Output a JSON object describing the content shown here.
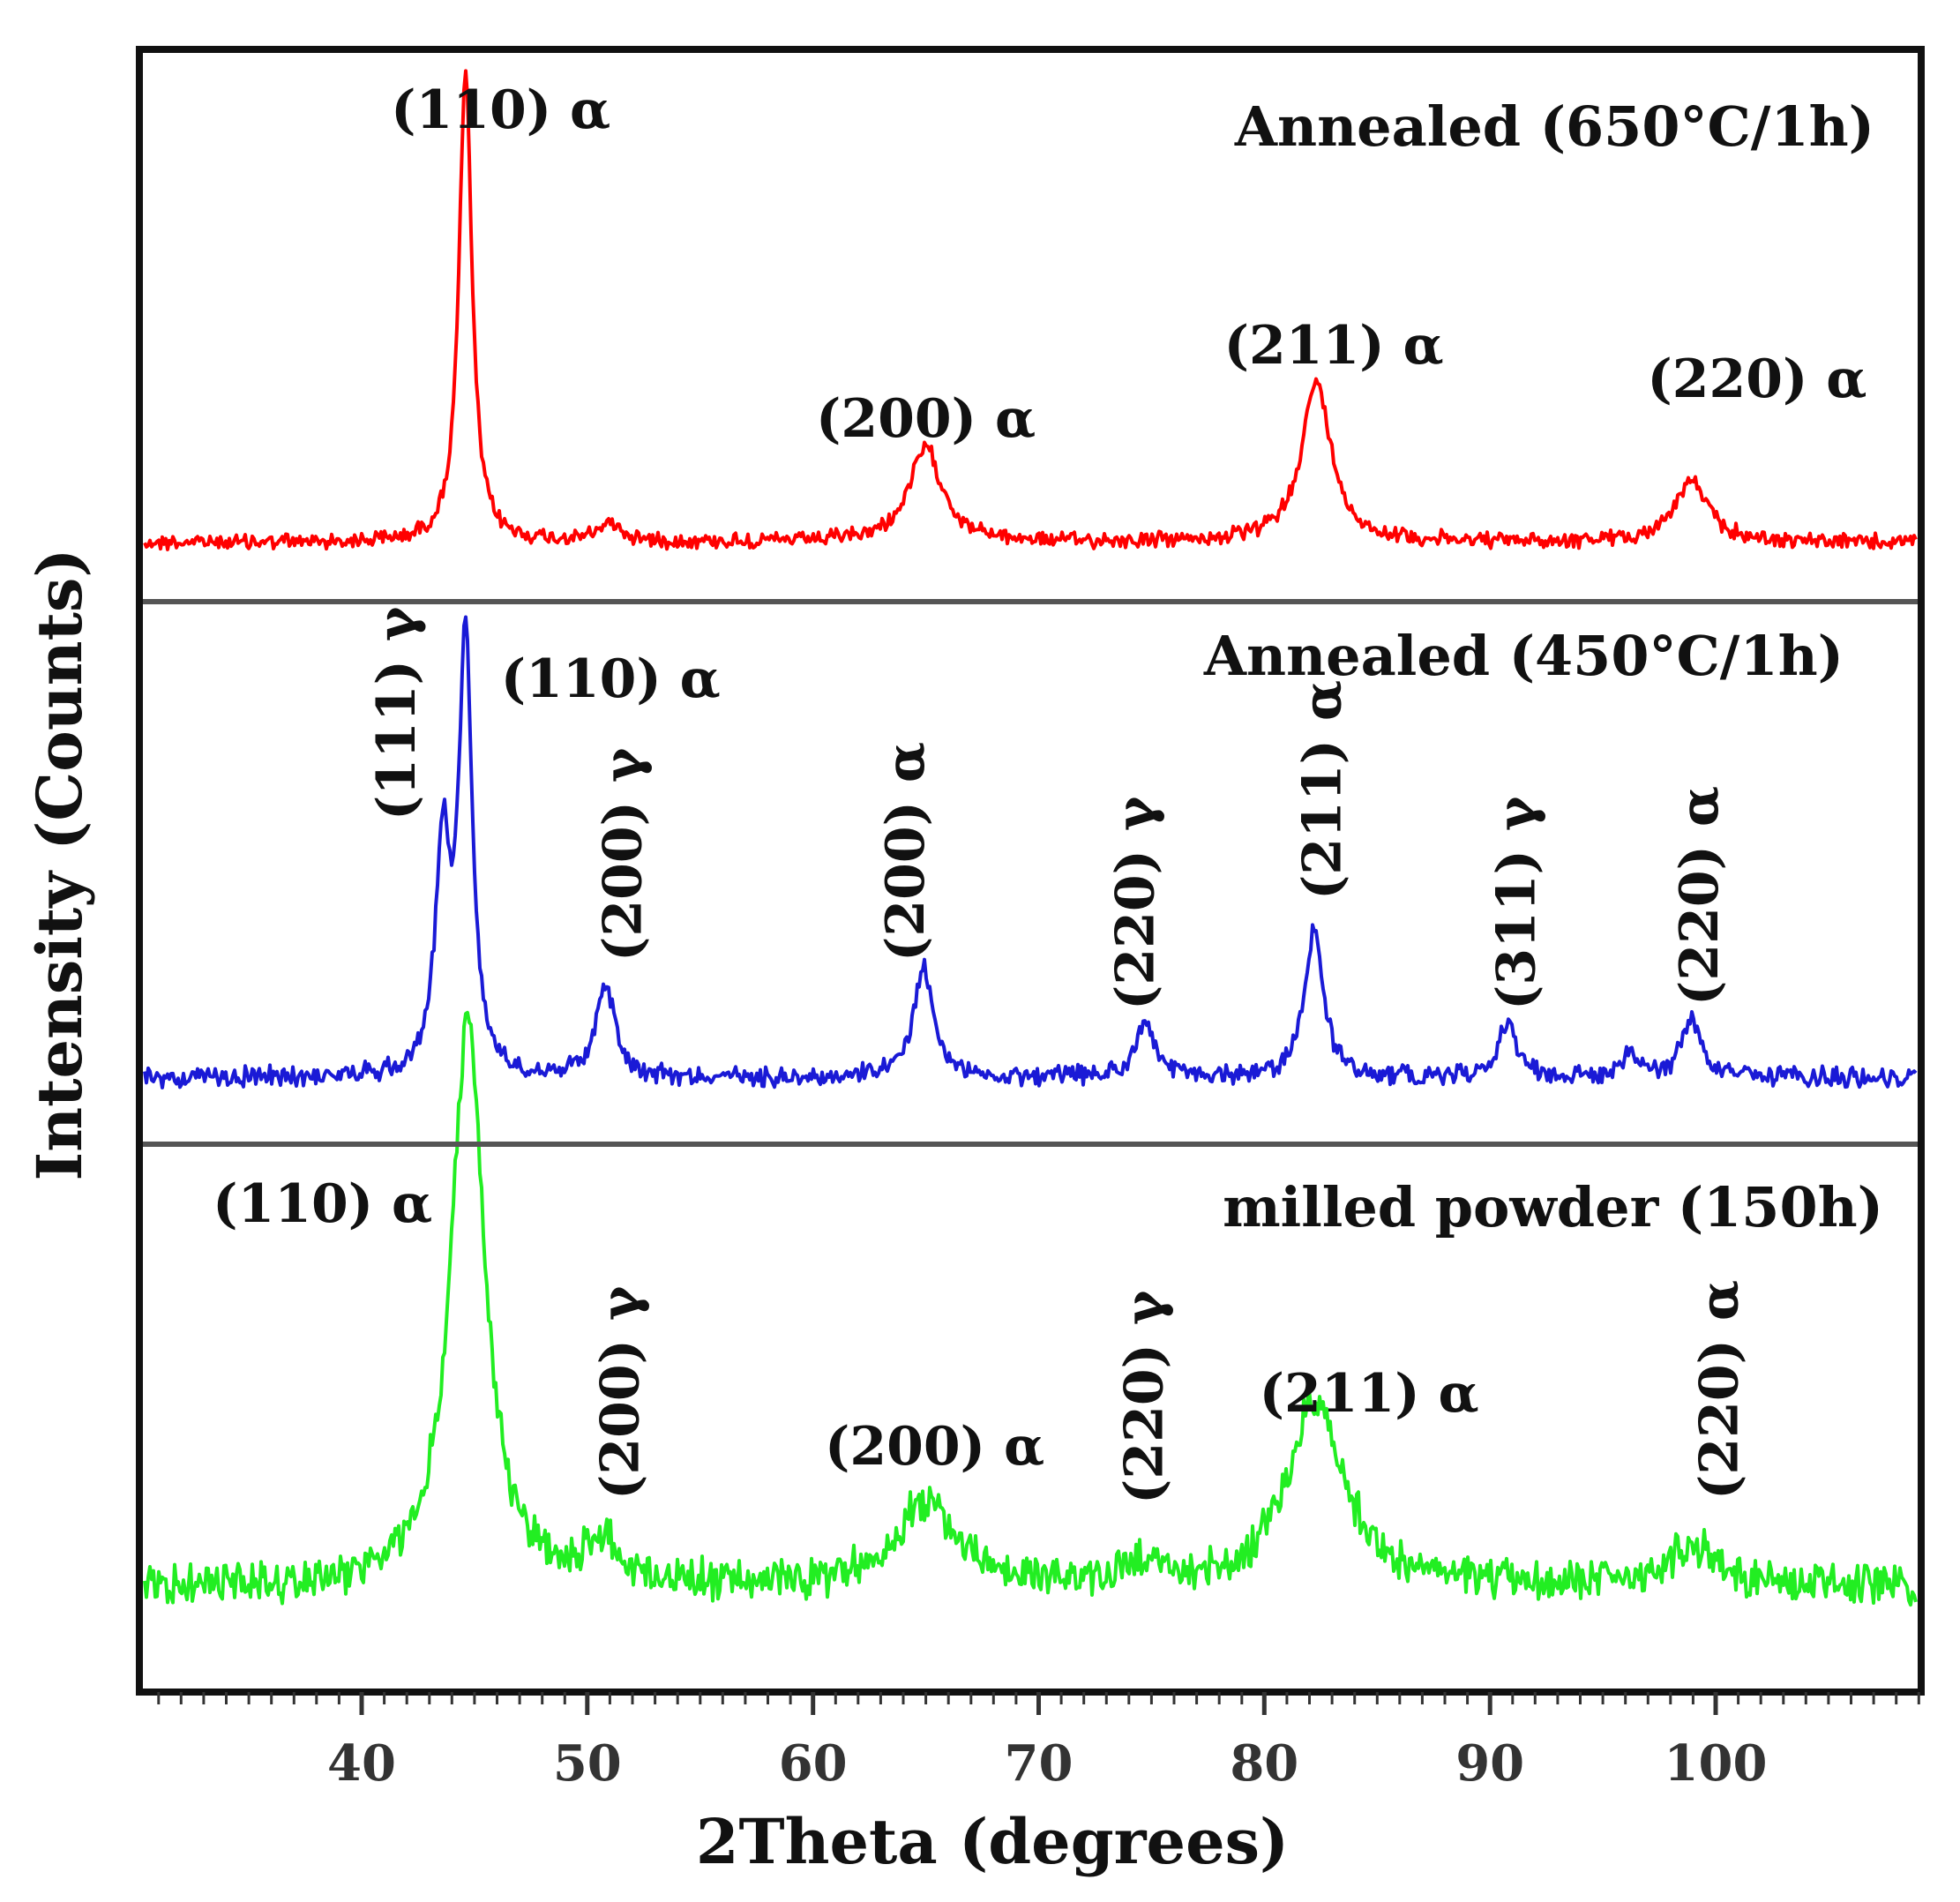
{
  "chart_data": {
    "type": "line",
    "stacked_offset": true,
    "xlabel": "2Theta (degrees)",
    "ylabel": "Intensity (Counts)",
    "xlim": [
      30,
      110
    ],
    "x_ticks": [
      40,
      50,
      60,
      70,
      80,
      90,
      100
    ],
    "x_tick_labels": [
      "40",
      "50",
      "60",
      "70",
      "80",
      "90",
      "100"
    ],
    "y_ticks_visible": false,
    "grid": false,
    "series": [
      {
        "name": "Annealed (650°C/1h)",
        "color": "#ff0000",
        "panel": "top",
        "peaks": [
          {
            "x": 44.6,
            "height": 1.0,
            "width": 0.35,
            "label": "(110) α",
            "label_orientation": "horizontal"
          },
          {
            "x": 51.0,
            "height": 0.04,
            "width": 0.6,
            "label": "",
            "label_orientation": "horizontal"
          },
          {
            "x": 65.0,
            "height": 0.2,
            "width": 0.9,
            "label": "(200) α",
            "label_orientation": "horizontal"
          },
          {
            "x": 82.3,
            "height": 0.34,
            "width": 0.8,
            "label": "(211) α",
            "label_orientation": "horizontal"
          },
          {
            "x": 98.9,
            "height": 0.13,
            "width": 0.9,
            "label": "(220) α",
            "label_orientation": "horizontal"
          }
        ]
      },
      {
        "name": "Annealed (450°C/1h)",
        "color": "#1a1ad6",
        "panel": "middle",
        "peaks": [
          {
            "x": 43.6,
            "height": 0.45,
            "width": 0.4,
            "label": "(111) γ",
            "label_orientation": "vertical"
          },
          {
            "x": 44.6,
            "height": 0.88,
            "width": 0.35,
            "label": "(110) α",
            "label_orientation": "horizontal"
          },
          {
            "x": 50.8,
            "height": 0.19,
            "width": 0.5,
            "label": "(200) γ",
            "label_orientation": "vertical"
          },
          {
            "x": 64.9,
            "height": 0.23,
            "width": 0.5,
            "label": "(200) α",
            "label_orientation": "vertical"
          },
          {
            "x": 74.7,
            "height": 0.11,
            "width": 0.5,
            "label": "(220) γ",
            "label_orientation": "vertical"
          },
          {
            "x": 82.2,
            "height": 0.3,
            "width": 0.5,
            "label": "(211) α",
            "label_orientation": "vertical"
          },
          {
            "x": 90.8,
            "height": 0.11,
            "width": 0.5,
            "label": "(311) γ",
            "label_orientation": "vertical"
          },
          {
            "x": 96.2,
            "height": 0.04,
            "width": 0.5,
            "label": "",
            "label_orientation": "vertical"
          },
          {
            "x": 98.9,
            "height": 0.12,
            "width": 0.5,
            "label": "(220) α",
            "label_orientation": "vertical"
          }
        ]
      },
      {
        "name": "milled powder (150h)",
        "color": "#22ee22",
        "panel": "bottom",
        "peaks": [
          {
            "x": 44.7,
            "height": 1.0,
            "width": 0.9,
            "label": "(110) α",
            "label_orientation": "horizontal"
          },
          {
            "x": 50.7,
            "height": 0.07,
            "width": 0.9,
            "label": "(200) γ",
            "label_orientation": "vertical"
          },
          {
            "x": 65.0,
            "height": 0.15,
            "width": 1.6,
            "label": "(200) α",
            "label_orientation": "horizontal"
          },
          {
            "x": 74.7,
            "height": 0.04,
            "width": 0.8,
            "label": "(220) γ",
            "label_orientation": "vertical"
          },
          {
            "x": 82.3,
            "height": 0.33,
            "width": 1.5,
            "label": "(211) α",
            "label_orientation": "horizontal"
          },
          {
            "x": 99.0,
            "height": 0.07,
            "width": 1.6,
            "label": "(220) α",
            "label_orientation": "vertical"
          }
        ]
      }
    ]
  }
}
